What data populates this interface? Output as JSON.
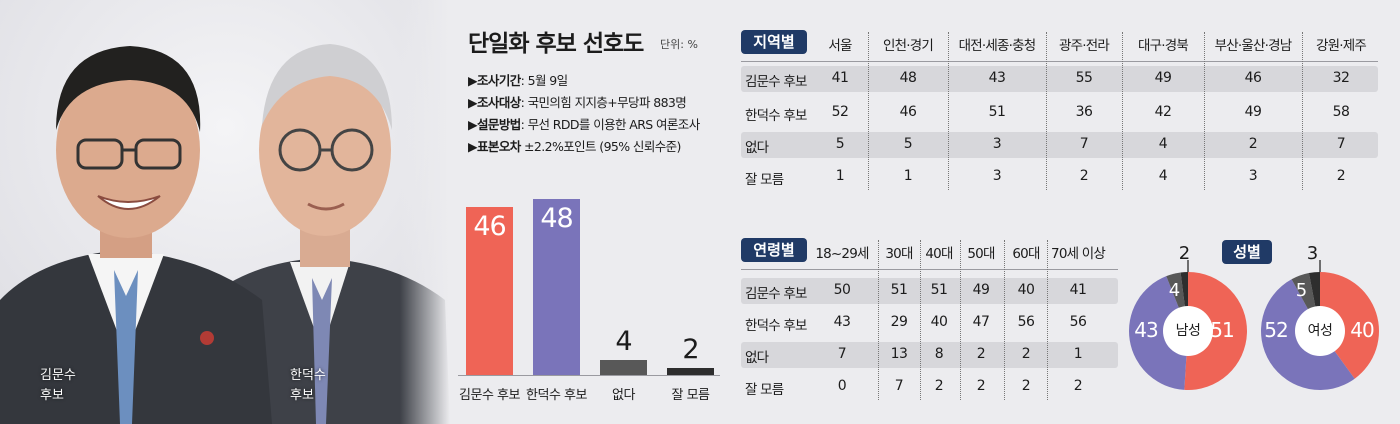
{
  "photos": [
    {
      "name": "김문수",
      "title": "후보"
    },
    {
      "name": "한덕수",
      "title": "후보"
    }
  ],
  "colors": {
    "kim": "#ef6456",
    "han": "#7a74ba",
    "none": "#585858",
    "dunno": "#2e2e2e",
    "tag": "#203a66",
    "stripe": "#d7d7db"
  },
  "header": {
    "title": "단일화 후보 선호도",
    "unit": "단위: %",
    "info": [
      {
        "key": "▶조사기간",
        "value": ": 5월 9일"
      },
      {
        "key": "▶조사대상",
        "value": ": 국민의힘 지지층+무당파 883명"
      },
      {
        "key": "▶설문방법",
        "value": ": 무선 RDD를 이용한 ARS 여론조사"
      },
      {
        "key": "▶표본오차",
        "value": " ±2.2%포인트 (95% 신뢰수준)"
      }
    ]
  },
  "chart_data": [
    {
      "type": "bar",
      "title": "단일화 후보 선호도",
      "categories": [
        "김문수 후보",
        "한덕수 후보",
        "없다",
        "잘 모름"
      ],
      "values": [
        46,
        48,
        4,
        2
      ],
      "value_labels": [
        "46",
        "48",
        "4",
        "2"
      ],
      "ylim": [
        0,
        50
      ]
    },
    {
      "type": "table",
      "tag": "지역별",
      "columns": [
        "서울",
        "인천·경기",
        "대전·세종·충청",
        "광주·전라",
        "대구·경북",
        "부산·울산·경남",
        "강원·제주"
      ],
      "rows": [
        {
          "label": "김문수 후보",
          "values": [
            "41",
            "48",
            "43",
            "55",
            "49",
            "46",
            "32"
          ]
        },
        {
          "label": "한덕수 후보",
          "values": [
            "52",
            "46",
            "51",
            "36",
            "42",
            "49",
            "58"
          ]
        },
        {
          "label": "없다",
          "values": [
            "5",
            "5",
            "3",
            "7",
            "4",
            "2",
            "7"
          ]
        },
        {
          "label": "잘 모름",
          "values": [
            "1",
            "1",
            "3",
            "2",
            "4",
            "3",
            "2"
          ]
        }
      ]
    },
    {
      "type": "table",
      "tag": "연령별",
      "columns": [
        "18~29세",
        "30대",
        "40대",
        "50대",
        "60대",
        "70세 이상"
      ],
      "rows": [
        {
          "label": "김문수 후보",
          "values": [
            "50",
            "51",
            "51",
            "49",
            "40",
            "41"
          ]
        },
        {
          "label": "한덕수 후보",
          "values": [
            "43",
            "29",
            "40",
            "47",
            "56",
            "56"
          ]
        },
        {
          "label": "없다",
          "values": [
            "7",
            "13",
            "8",
            "2",
            "2",
            "1"
          ]
        },
        {
          "label": "잘 모름",
          "values": [
            "0",
            "7",
            "2",
            "2",
            "2",
            "2"
          ]
        }
      ]
    },
    {
      "type": "pie",
      "tag": "성별",
      "center_label": "남성",
      "categories": [
        "김문수 후보",
        "한덕수 후보",
        "없다",
        "잘 모름"
      ],
      "values": [
        51,
        43,
        4,
        2
      ],
      "value_labels": [
        "51",
        "43",
        "4",
        "2"
      ]
    },
    {
      "type": "pie",
      "center_label": "여성",
      "categories": [
        "김문수 후보",
        "한덕수 후보",
        "없다",
        "잘 모름"
      ],
      "values": [
        40,
        52,
        5,
        3
      ],
      "value_labels": [
        "40",
        "52",
        "5",
        "3"
      ]
    }
  ]
}
